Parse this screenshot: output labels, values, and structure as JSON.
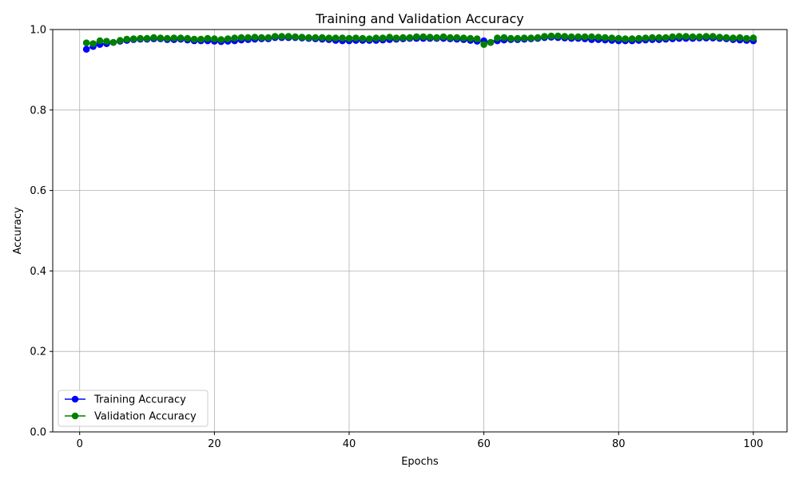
{
  "chart_data": {
    "type": "line",
    "title": "Training and Validation Accuracy",
    "xlabel": "Epochs",
    "ylabel": "Accuracy",
    "xlim": [
      -4,
      105
    ],
    "ylim": [
      0.0,
      1.0
    ],
    "x_ticks": [
      0,
      20,
      40,
      60,
      80,
      100
    ],
    "y_ticks": [
      0.0,
      0.2,
      0.4,
      0.6,
      0.8,
      1.0
    ],
    "x_tick_labels": [
      "0",
      "20",
      "40",
      "60",
      "80",
      "100"
    ],
    "y_tick_labels": [
      "0.0",
      "0.2",
      "0.4",
      "0.6",
      "0.8",
      "1.0"
    ],
    "grid": true,
    "legend_position": "lower-left",
    "x": [
      1,
      2,
      3,
      4,
      5,
      6,
      7,
      8,
      9,
      10,
      11,
      12,
      13,
      14,
      15,
      16,
      17,
      18,
      19,
      20,
      21,
      22,
      23,
      24,
      25,
      26,
      27,
      28,
      29,
      30,
      31,
      32,
      33,
      34,
      35,
      36,
      37,
      38,
      39,
      40,
      41,
      42,
      43,
      44,
      45,
      46,
      47,
      48,
      49,
      50,
      51,
      52,
      53,
      54,
      55,
      56,
      57,
      58,
      59,
      60,
      61,
      62,
      63,
      64,
      65,
      66,
      67,
      68,
      69,
      70,
      71,
      72,
      73,
      74,
      75,
      76,
      77,
      78,
      79,
      80,
      81,
      82,
      83,
      84,
      85,
      86,
      87,
      88,
      89,
      90,
      91,
      92,
      93,
      94,
      95,
      96,
      97,
      98,
      99,
      100
    ],
    "series": [
      {
        "name": "Training Accuracy",
        "color": "#0000ff",
        "values": [
          0.951,
          0.958,
          0.963,
          0.965,
          0.968,
          0.971,
          0.973,
          0.975,
          0.976,
          0.976,
          0.977,
          0.977,
          0.975,
          0.975,
          0.976,
          0.974,
          0.972,
          0.972,
          0.972,
          0.971,
          0.97,
          0.971,
          0.972,
          0.974,
          0.975,
          0.976,
          0.977,
          0.977,
          0.98,
          0.98,
          0.98,
          0.98,
          0.979,
          0.978,
          0.977,
          0.976,
          0.975,
          0.973,
          0.972,
          0.972,
          0.973,
          0.973,
          0.973,
          0.973,
          0.974,
          0.975,
          0.976,
          0.977,
          0.978,
          0.978,
          0.978,
          0.978,
          0.978,
          0.978,
          0.977,
          0.976,
          0.975,
          0.973,
          0.971,
          0.972,
          0.968,
          0.972,
          0.974,
          0.975,
          0.975,
          0.976,
          0.977,
          0.978,
          0.98,
          0.981,
          0.98,
          0.979,
          0.978,
          0.978,
          0.977,
          0.975,
          0.975,
          0.974,
          0.973,
          0.972,
          0.972,
          0.972,
          0.973,
          0.974,
          0.975,
          0.975,
          0.976,
          0.977,
          0.978,
          0.978,
          0.978,
          0.979,
          0.979,
          0.979,
          0.978,
          0.977,
          0.975,
          0.974,
          0.973,
          0.972
        ]
      },
      {
        "name": "Validation Accuracy",
        "color": "#008000",
        "values": [
          0.967,
          0.965,
          0.972,
          0.971,
          0.968,
          0.973,
          0.976,
          0.977,
          0.978,
          0.978,
          0.98,
          0.979,
          0.978,
          0.979,
          0.979,
          0.978,
          0.976,
          0.976,
          0.978,
          0.977,
          0.975,
          0.977,
          0.979,
          0.98,
          0.98,
          0.981,
          0.98,
          0.98,
          0.983,
          0.983,
          0.983,
          0.982,
          0.981,
          0.98,
          0.98,
          0.98,
          0.979,
          0.979,
          0.979,
          0.978,
          0.979,
          0.978,
          0.977,
          0.979,
          0.979,
          0.981,
          0.979,
          0.98,
          0.98,
          0.982,
          0.982,
          0.981,
          0.98,
          0.982,
          0.98,
          0.98,
          0.979,
          0.978,
          0.977,
          0.963,
          0.968,
          0.979,
          0.98,
          0.978,
          0.978,
          0.979,
          0.979,
          0.98,
          0.983,
          0.984,
          0.984,
          0.983,
          0.982,
          0.982,
          0.982,
          0.982,
          0.981,
          0.98,
          0.979,
          0.978,
          0.977,
          0.977,
          0.978,
          0.979,
          0.98,
          0.98,
          0.98,
          0.982,
          0.983,
          0.983,
          0.982,
          0.982,
          0.983,
          0.983,
          0.981,
          0.98,
          0.979,
          0.98,
          0.978,
          0.979
        ]
      }
    ]
  }
}
